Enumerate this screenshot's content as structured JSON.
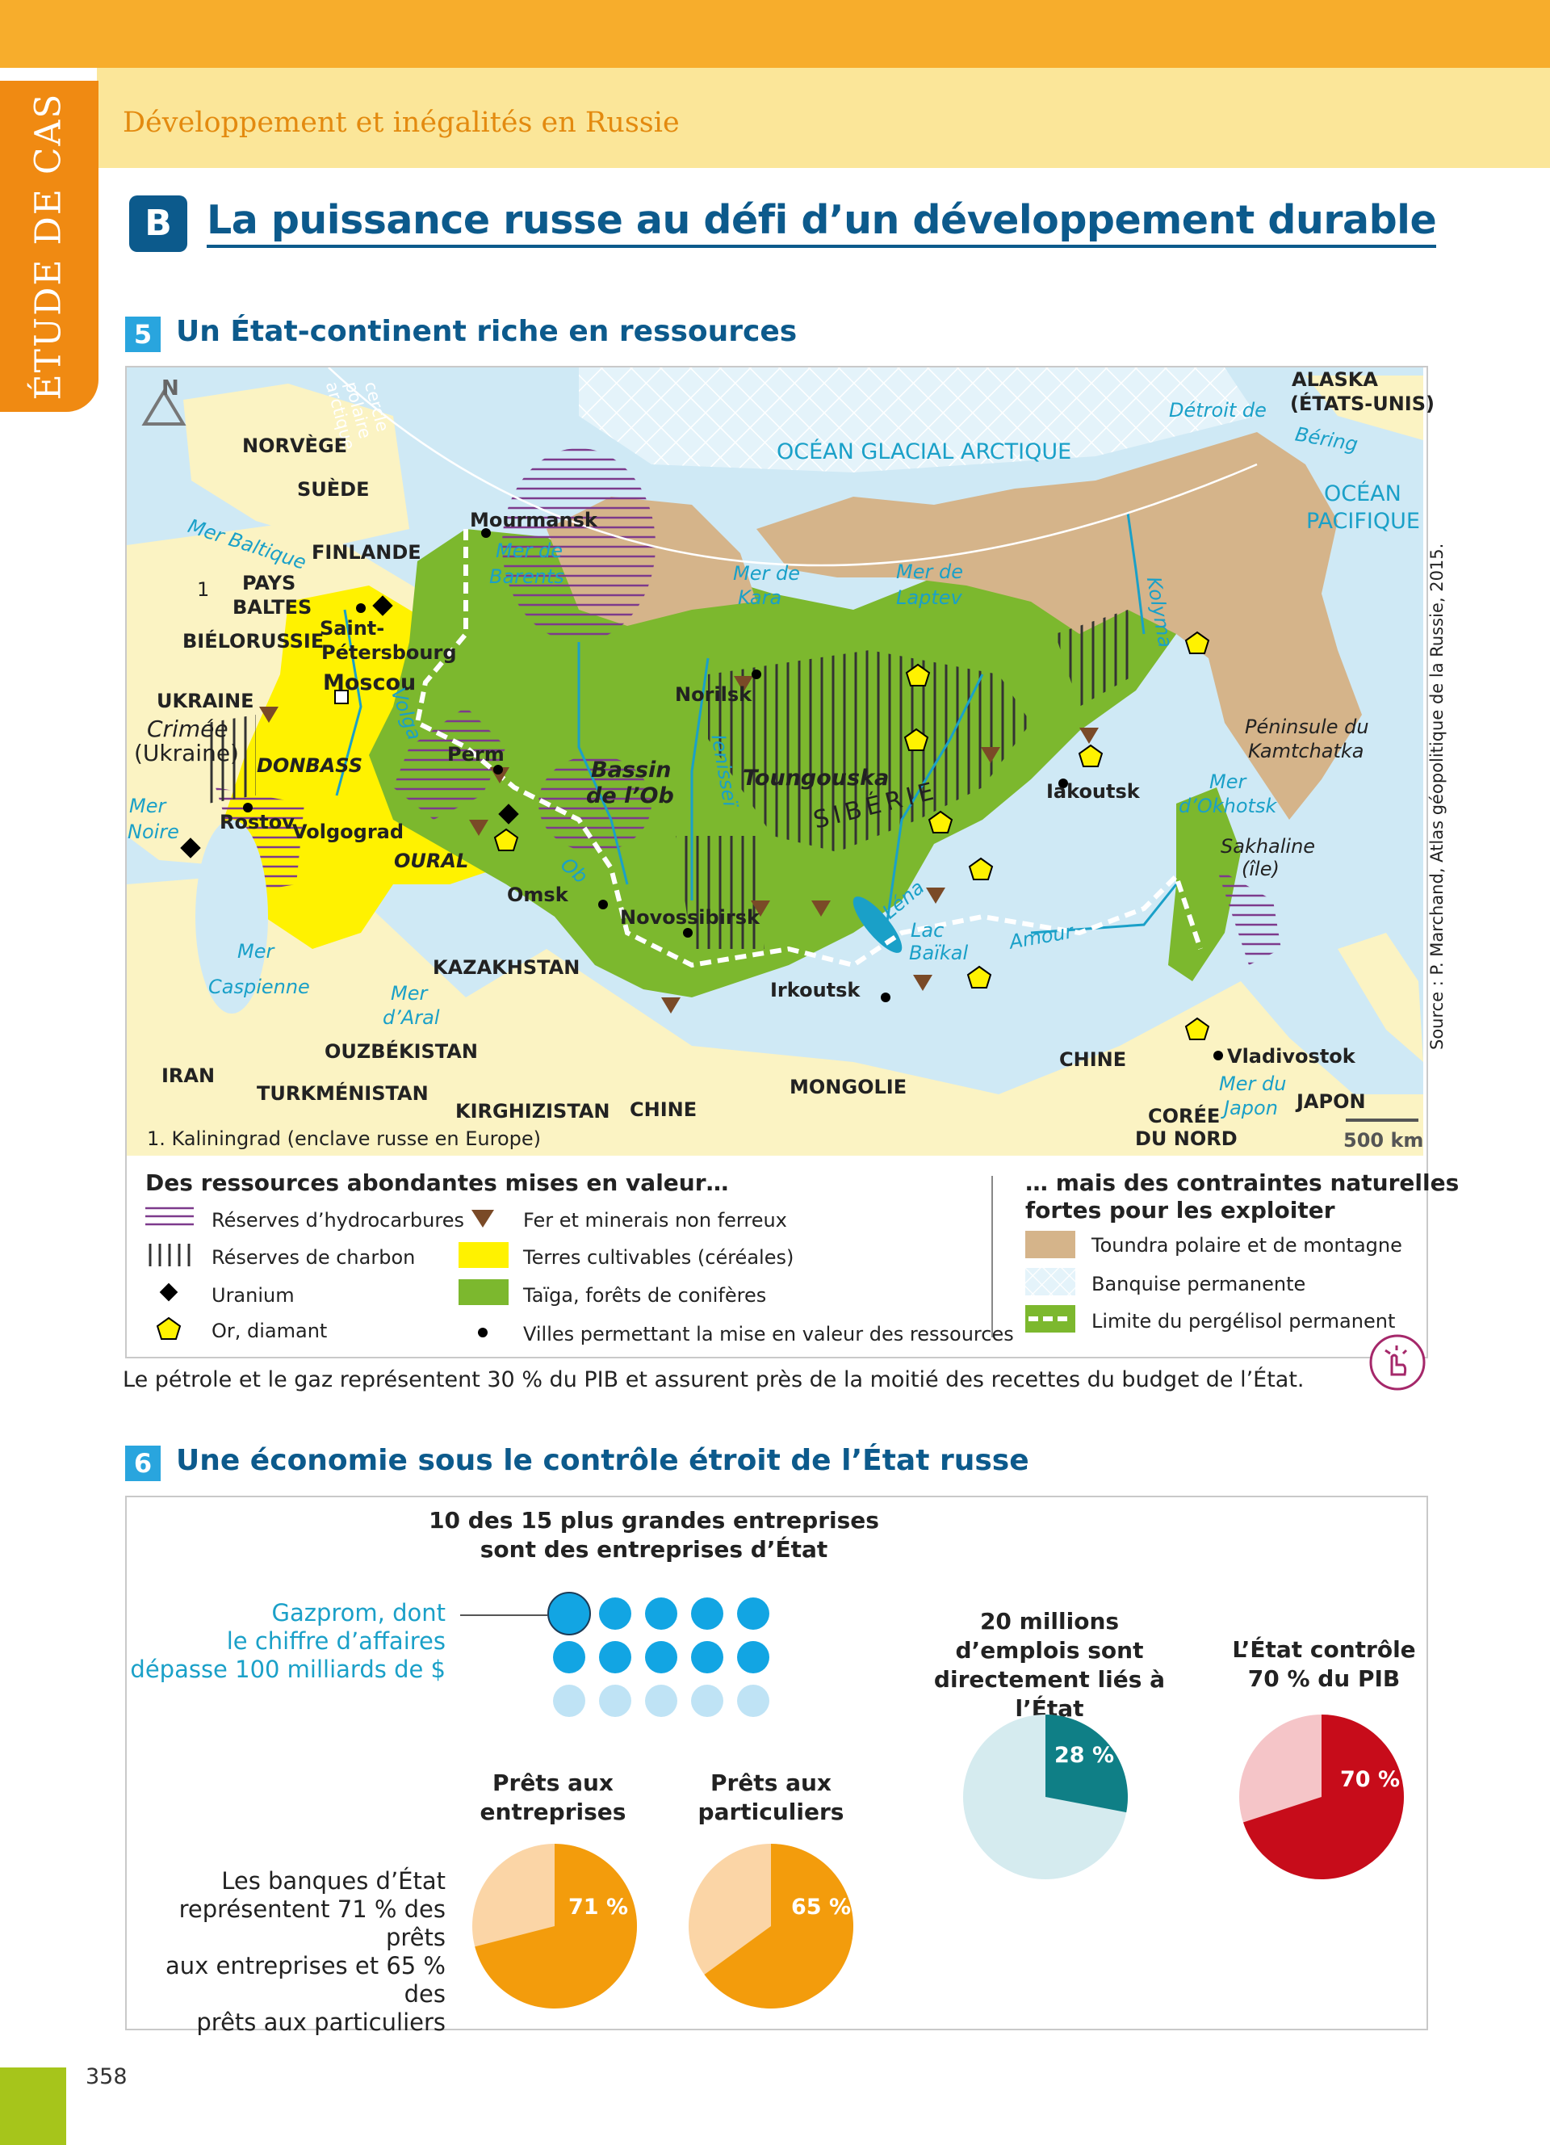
{
  "header": {
    "side_tab": "ÉTUDE DE CAS",
    "chapter_title": "Développement et inégalités en Russie"
  },
  "section": {
    "letter": "B",
    "title": "La puissance russe au défi d’un développement durable"
  },
  "figure5": {
    "number": "5",
    "title": "Un État-continent riche en ressources",
    "compass": "N",
    "labels": {
      "alaska": "ALASKA",
      "etats_unis": "(ÉTATS-UNIS)",
      "detroit_de": "Détroit  de",
      "bering": "Béring",
      "ocean_arctique": "OCÉAN GLACIAL ARCTIQUE",
      "ocean_pacifique_1": "OCÉAN",
      "ocean_pacifique_2": "PACIFIQUE",
      "cercle_1": "cercle",
      "cercle_2": "polaire",
      "cercle_3": "arctique",
      "norvege": "NORVÈGE",
      "suede": "SUÈDE",
      "mourmansk": "Mourmansk",
      "mer_barents_1": "Mer de",
      "mer_barents_2": "Barents",
      "mer_baltique": "Mer Baltique",
      "finlande": "FINLANDE",
      "kaliningrad_mark": "1",
      "pays_baltes_1": "PAYS",
      "pays_baltes_2": "BALTES",
      "bielorussie": "BIÉLORUSSIE",
      "saint_pet_1": "Saint-",
      "saint_pet_2": "Pétersbourg",
      "moscou": "Moscou",
      "ukraine": "UKRAINE",
      "crimee_1": "Crimée",
      "crimee_2": "(Ukraine)",
      "donbass": "DONBASS",
      "volga": "Volga",
      "mer_noire_1": "Mer",
      "mer_noire_2": "Noire",
      "rostov": "Rostov",
      "volgograd": "Volgograd",
      "oural": "OURAL",
      "perm": "Perm",
      "mer_kara_1": "Mer de",
      "mer_kara_2": "Kara",
      "mer_laptev_1": "Mer de",
      "mer_laptev_2": "Laptev",
      "kolyma": "Kolyma",
      "norilsk": "Norilsk",
      "bassin_1": "Bassin",
      "bassin_2": "de l’Ob",
      "ienissei": "Ienisseï",
      "toungouska": "Toungouska",
      "siberie": "SIBÉRIE",
      "iakoutsk": "Iakoutsk",
      "kamtchatka_1": "Péninsule du",
      "kamtchatka_2": "Kamtchatka",
      "okhotsk_1": "Mer",
      "okhotsk_2": "d’Okhotsk",
      "sakhaline_1": "Sakhaline",
      "sakhaline_2": "(île)",
      "ob": "Ob",
      "omsk": "Omsk",
      "novossibirsk": "Novossibirsk",
      "lena": "Léna",
      "baikal_1": "Lac",
      "baikal_2": "Baïkal",
      "amour": "Amour",
      "irkoutsk": "Irkoutsk",
      "mer_caspienne_1": "Mer",
      "mer_caspienne_2": "Caspienne",
      "mer_aral_1": "Mer",
      "mer_aral_2": "d’Aral",
      "kazakhstan": "KAZAKHSTAN",
      "ouzbekistan": "OUZBÉKISTAN",
      "iran": "IRAN",
      "turkmenistan": "TURKMÉNISTAN",
      "kirghizistan": "KIRGHIZISTAN",
      "chine_1": "CHINE",
      "mongolie": "MONGOLIE",
      "chine_2": "CHINE",
      "vladivostok": "Vladivostok",
      "mer_japon_1": "Mer du",
      "mer_japon_2": "Japon",
      "japon": "JAPON",
      "coree_1": "CORÉE",
      "coree_2": "DU NORD",
      "footnote": "1. Kaliningrad (enclave russe en Europe)",
      "scale": "500 km",
      "source": "Source : P. Marchand, Atlas géopolitique de la Russie, 2015."
    },
    "legend": {
      "left_heading": "Des ressources abondantes mises en valeur…",
      "right_heading_1": "… mais des contraintes naturelles",
      "right_heading_2": "fortes pour les exploiter",
      "items": {
        "hydrocarbures": "Réserves d’hydrocarbures",
        "charbon": "Réserves de charbon",
        "uranium": "Uranium",
        "or": "Or, diamant",
        "fer": "Fer et minerais non ferreux",
        "terres": "Terres cultivables (céréales)",
        "taiga": "Taïga, forêts de conifères",
        "villes": "Villes permettant la mise en valeur des ressources",
        "toundra": "Toundra polaire et de montagne",
        "banquise": "Banquise permanente",
        "pergelisol": "Limite du pergélisol permanent"
      }
    },
    "caption": "Le pétrole et le gaz représentent 30 % du PIB et assurent près de la moitié des recettes du budget de l’État."
  },
  "figure6": {
    "number": "6",
    "title": "Une économie sous le contrôle étroit de l’État russe",
    "enterprises_1": "10 des 15 plus grandes entreprises",
    "enterprises_2": "sont des entreprises d’État",
    "enterprises_state": 10,
    "enterprises_total": 15,
    "gazprom_1": "Gazprom, dont",
    "gazprom_2": "le chiffre d’affaires",
    "gazprom_3": "dépasse 100 milliards de $",
    "emplois_1": "20 millions",
    "emplois_2": "d’emplois sont",
    "emplois_3": "directement liés à l’État",
    "pib_1": "L’État contrôle",
    "pib_2": "70 % du PIB",
    "prets_ent_1": "Prêts aux",
    "prets_ent_2": "entreprises",
    "prets_part_1": "Prêts aux",
    "prets_part_2": "particuliers",
    "banques_1": "Les banques d’État",
    "banques_2": "représentent 71 % des prêts",
    "banques_3": "aux entreprises et 65 % des",
    "banques_4": "prêts aux particuliers",
    "pies": {
      "emplois": {
        "value": 28,
        "label": "28 %",
        "color": "#0f7f86",
        "bg": "#d5ebef"
      },
      "pib": {
        "value": 70,
        "label": "70 %",
        "color": "#c70c1a",
        "bg": "#f5c5c8"
      },
      "prets_entreprises": {
        "value": 71,
        "label": "71 %",
        "color": "#f39c0c",
        "bg": "#fbd5a6"
      },
      "prets_particuliers": {
        "value": 65,
        "label": "65 %",
        "color": "#f39c0c",
        "bg": "#fbd5a6"
      }
    }
  },
  "page_number": "358",
  "colors": {
    "header_orange": "#f7ad2c",
    "tab_orange": "#f08a12",
    "title_blue": "#0c5a8c",
    "badge_blue": "#29a5de",
    "taiga_green": "#7cb82e",
    "cereal_yellow": "#fff200",
    "tundra": "#d5b48a",
    "sea": "#cfe9f5"
  }
}
